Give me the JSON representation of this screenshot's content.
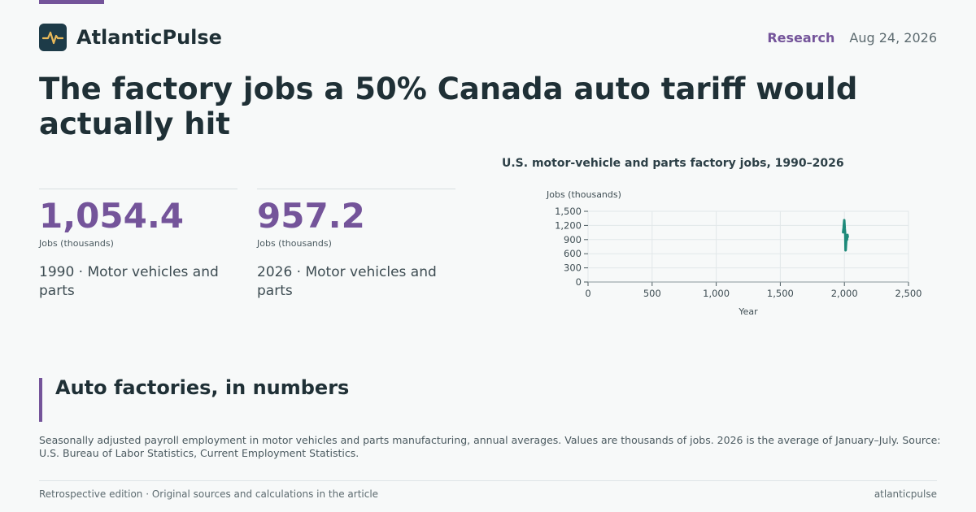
{
  "brand": {
    "name": "AtlanticPulse",
    "logo_icon": "pulse-icon"
  },
  "header": {
    "section": "Research",
    "date": "Aug 24, 2026"
  },
  "headline": "The factory jobs a 50% Canada auto tariff would actually hit",
  "stats": [
    {
      "value": "1,054.4",
      "unit": "Jobs (thousands)",
      "desc": "1990 · Motor vehicles and parts"
    },
    {
      "value": "957.2",
      "unit": "Jobs (thousands)",
      "desc": "2026 · Motor vehicles and parts"
    }
  ],
  "section": {
    "title": "Auto factories, in numbers"
  },
  "note": "Seasonally adjusted payroll employment in motor vehicles and parts manufacturing, annual averages. Values are thousands of jobs. 2026 is the average of January–July. Source: U.S. Bureau of Labor Statistics, Current Employment Statistics.",
  "footer": {
    "left": "Retrospective edition · Original sources and calculations in the article",
    "right": "atlanticpulse"
  },
  "colors": {
    "accent": "#74549a",
    "series": "#1e8a7a",
    "grid": "#e2e7e9",
    "text": "#1f3036"
  },
  "chart_data": {
    "type": "line",
    "title": "U.S. motor-vehicle and parts factory jobs, 1990–2026",
    "xlabel": "Year",
    "ylabel": "Jobs (thousands)",
    "xlim": [
      0,
      2500
    ],
    "ylim": [
      0,
      1500
    ],
    "x_ticks": [
      0,
      500,
      1000,
      1500,
      2000,
      2500
    ],
    "x_tick_labels": [
      "0",
      "500",
      "1,000",
      "1,500",
      "2,000",
      "2,500"
    ],
    "y_ticks": [
      0,
      300,
      600,
      900,
      1200,
      1500
    ],
    "y_tick_labels": [
      "0",
      "300",
      "600",
      "900",
      "1,200",
      "1,500"
    ],
    "grid": true,
    "series": [
      {
        "x": [
          1990,
          1994,
          1999,
          2003,
          2007,
          2009,
          2010,
          2013,
          2016,
          2019,
          2020,
          2022,
          2024,
          2026
        ],
        "y": [
          1054.4,
          1150,
          1313,
          1125,
          997,
          672,
          677,
          820,
          947,
          990,
          897,
          965,
          1000,
          957.2
        ]
      }
    ]
  }
}
